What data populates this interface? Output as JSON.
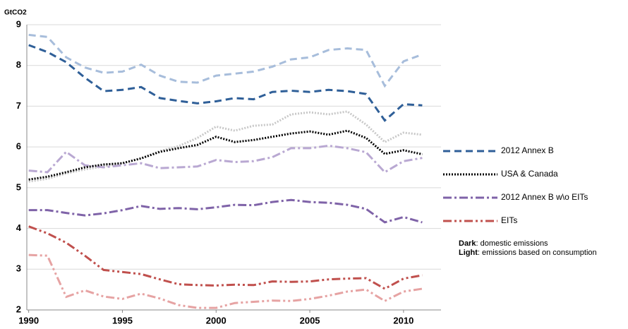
{
  "chart_data": {
    "type": "line",
    "y_label": "GtCO2",
    "x": [
      1990,
      1991,
      1992,
      1993,
      1994,
      1995,
      1996,
      1997,
      1998,
      1999,
      2000,
      2001,
      2002,
      2003,
      2004,
      2005,
      2006,
      2007,
      2008,
      2009,
      2010,
      2011
    ],
    "xlim": [
      1989.9,
      2012
    ],
    "xticks": [
      1990,
      1995,
      2000,
      2005,
      2010
    ],
    "ylim": [
      2,
      9
    ],
    "yticks": [
      2,
      3,
      4,
      5,
      6,
      7,
      8,
      9
    ],
    "grid": true,
    "legend": "right",
    "series": [
      {
        "name": "2012 Annex B",
        "color": "#2f5f98",
        "dash": "10,6",
        "values": [
          8.5,
          8.33,
          8.08,
          7.7,
          7.37,
          7.4,
          7.47,
          7.2,
          7.13,
          7.07,
          7.12,
          7.2,
          7.17,
          7.35,
          7.38,
          7.35,
          7.4,
          7.37,
          7.3,
          6.65,
          7.05,
          7.02
        ]
      },
      {
        "color": "#a7bddb",
        "dash": "10,6",
        "values": [
          8.75,
          8.7,
          8.2,
          7.95,
          7.82,
          7.85,
          8.02,
          7.75,
          7.6,
          7.58,
          7.75,
          7.8,
          7.85,
          7.97,
          8.15,
          8.2,
          8.38,
          8.42,
          8.38,
          7.5,
          8.1,
          8.27
        ]
      },
      {
        "name": "USA & Canada",
        "color": "#000000",
        "dash": "2,2",
        "values": [
          5.2,
          5.27,
          5.38,
          5.5,
          5.57,
          5.6,
          5.72,
          5.88,
          5.97,
          6.05,
          6.25,
          6.12,
          6.17,
          6.25,
          6.33,
          6.38,
          6.3,
          6.4,
          6.22,
          5.83,
          5.92,
          5.82
        ]
      },
      {
        "color": "#c8c8c8",
        "dash": "2,2",
        "values": [
          5.15,
          5.22,
          5.35,
          5.45,
          5.52,
          5.6,
          5.72,
          5.9,
          6.02,
          6.22,
          6.5,
          6.4,
          6.52,
          6.55,
          6.8,
          6.85,
          6.8,
          6.87,
          6.55,
          6.12,
          6.35,
          6.3
        ]
      },
      {
        "name": "2012 Annex B w\\o EITs",
        "color": "#7f63a8",
        "dash": "12,4,3,4",
        "values": [
          4.45,
          4.45,
          4.38,
          4.32,
          4.37,
          4.45,
          4.55,
          4.48,
          4.5,
          4.47,
          4.52,
          4.58,
          4.57,
          4.65,
          4.7,
          4.65,
          4.63,
          4.58,
          4.48,
          4.15,
          4.28,
          4.15
        ]
      },
      {
        "color": "#b9a8d2",
        "dash": "12,4,3,4",
        "values": [
          5.42,
          5.38,
          5.88,
          5.55,
          5.5,
          5.55,
          5.6,
          5.48,
          5.5,
          5.52,
          5.68,
          5.63,
          5.65,
          5.75,
          5.97,
          5.97,
          6.03,
          5.97,
          5.87,
          5.38,
          5.65,
          5.73
        ]
      },
      {
        "name": "EITs",
        "color": "#c0504d",
        "dash": "12,4,3,4,3,4",
        "values": [
          4.05,
          3.88,
          3.65,
          3.33,
          2.98,
          2.93,
          2.88,
          2.75,
          2.63,
          2.61,
          2.6,
          2.62,
          2.61,
          2.7,
          2.69,
          2.7,
          2.75,
          2.77,
          2.78,
          2.52,
          2.77,
          2.85
        ]
      },
      {
        "color": "#e6a3a3",
        "dash": "12,4,3,4,3,4",
        "values": [
          3.35,
          3.33,
          2.32,
          2.48,
          2.33,
          2.27,
          2.4,
          2.28,
          2.12,
          2.05,
          2.05,
          2.17,
          2.2,
          2.23,
          2.22,
          2.27,
          2.35,
          2.45,
          2.5,
          2.22,
          2.45,
          2.52
        ]
      }
    ],
    "annotations": [
      {
        "bold": "Dark",
        "text": ": domestic  emissions"
      },
      {
        "bold": "Light",
        "text": ": emissions based on consumption"
      }
    ]
  }
}
